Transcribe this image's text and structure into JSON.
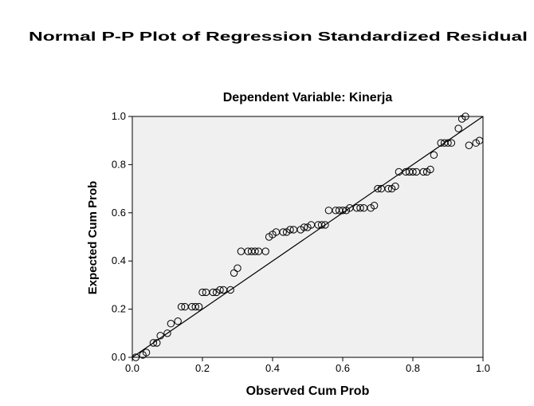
{
  "chart_data": {
    "type": "scatter",
    "title": "Normal P-P Plot of Regression Standardized Residual",
    "subtitle": "Dependent Variable: Kinerja",
    "xlabel": "Observed Cum Prob",
    "ylabel": "Expected Cum Prob",
    "xlim": [
      0.0,
      1.0
    ],
    "ylim": [
      0.0,
      1.0
    ],
    "xticks": [
      "0.0",
      "0.2",
      "0.4",
      "0.6",
      "0.8",
      "1.0"
    ],
    "yticks": [
      "0.0",
      "0.2",
      "0.4",
      "0.6",
      "0.8",
      "1.0"
    ],
    "plot_background": "#f0f0f0",
    "marker_style": "hollow-circle",
    "reference_line": {
      "from": [
        0,
        0
      ],
      "to": [
        1,
        1
      ]
    },
    "x": [
      0.01,
      0.03,
      0.04,
      0.06,
      0.07,
      0.08,
      0.1,
      0.11,
      0.13,
      0.14,
      0.15,
      0.17,
      0.18,
      0.19,
      0.2,
      0.21,
      0.23,
      0.24,
      0.25,
      0.26,
      0.28,
      0.29,
      0.3,
      0.31,
      0.33,
      0.34,
      0.35,
      0.36,
      0.38,
      0.39,
      0.4,
      0.41,
      0.43,
      0.44,
      0.45,
      0.46,
      0.48,
      0.49,
      0.5,
      0.51,
      0.53,
      0.54,
      0.55,
      0.56,
      0.58,
      0.59,
      0.6,
      0.61,
      0.62,
      0.64,
      0.65,
      0.66,
      0.68,
      0.69,
      0.7,
      0.71,
      0.73,
      0.74,
      0.75,
      0.76,
      0.78,
      0.79,
      0.8,
      0.81,
      0.83,
      0.84,
      0.85,
      0.86,
      0.88,
      0.89,
      0.9,
      0.91,
      0.93,
      0.94,
      0.95,
      0.96,
      0.98,
      0.99
    ],
    "y": [
      0.0,
      0.01,
      0.02,
      0.06,
      0.06,
      0.09,
      0.1,
      0.14,
      0.15,
      0.21,
      0.21,
      0.21,
      0.21,
      0.21,
      0.27,
      0.27,
      0.27,
      0.27,
      0.28,
      0.28,
      0.28,
      0.35,
      0.37,
      0.44,
      0.44,
      0.44,
      0.44,
      0.44,
      0.44,
      0.5,
      0.51,
      0.52,
      0.52,
      0.52,
      0.53,
      0.53,
      0.53,
      0.54,
      0.54,
      0.55,
      0.55,
      0.55,
      0.55,
      0.61,
      0.61,
      0.61,
      0.61,
      0.61,
      0.62,
      0.62,
      0.62,
      0.62,
      0.62,
      0.63,
      0.7,
      0.7,
      0.7,
      0.7,
      0.71,
      0.77,
      0.77,
      0.77,
      0.77,
      0.77,
      0.77,
      0.77,
      0.78,
      0.84,
      0.89,
      0.89,
      0.89,
      0.89,
      0.95,
      0.99,
      1.0,
      0.88,
      0.89,
      0.9
    ]
  }
}
